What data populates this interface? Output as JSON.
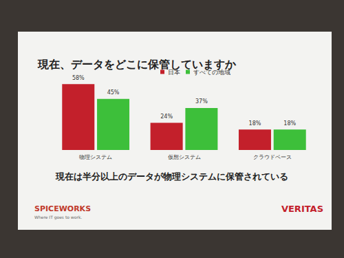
{
  "chart_data": {
    "type": "bar",
    "title": "現在、データをどこに保管していますか",
    "annotation": "現在は半分以上のデータが物理システムに保管されている",
    "categories": [
      "物理システム",
      "仮想システム",
      "クラウドベース"
    ],
    "series": [
      {
        "name": "日本",
        "color": "#c3202b",
        "values": [
          58,
          24,
          18
        ],
        "value_labels": [
          "58%",
          "24%",
          "18%"
        ]
      },
      {
        "name": "すべての地域",
        "color": "#3dbf3a",
        "values": [
          45,
          37,
          18
        ],
        "value_labels": [
          "45%",
          "37%",
          "18%"
        ]
      }
    ],
    "ylim": [
      0,
      60
    ],
    "yticks": [
      0,
      60
    ],
    "grid": false,
    "legend": "top-right",
    "data_labels": true,
    "tick_labels": "x"
  },
  "slide": {
    "logo_left": "SPICEWORKS",
    "logo_left_tagline": "Where IT goes to work.",
    "logo_right": "VERITAS"
  }
}
